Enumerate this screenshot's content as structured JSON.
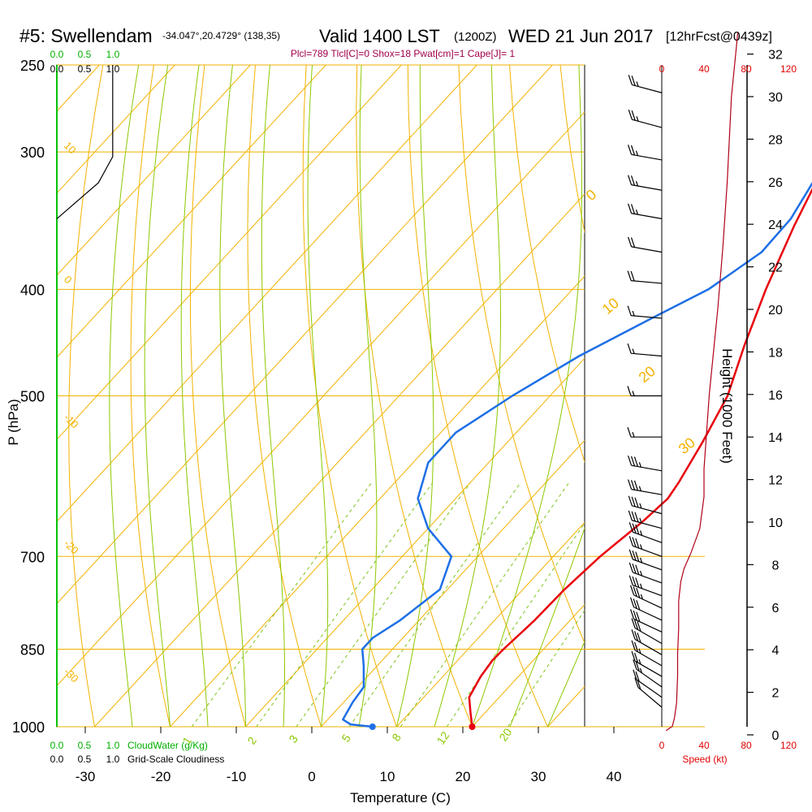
{
  "header": {
    "station": "#5: Swellendam",
    "location": "-34.047°,20.4729° (138,35)",
    "valid": "Valid 1400 LST",
    "zulu": "(1200Z)",
    "date": "WED 21 Jun 2017",
    "forecast": "[12hrFcst@0439z]",
    "indices": "Plcl=789 Tlcl[C]=0 Shox=18 Pwat[cm]=1 Cape[J]= 1"
  },
  "colors": {
    "isotherm": "#f2b200",
    "dry_adiabat": "#f2b200",
    "moist_adiabat": "#8cc800",
    "mixing_ratio": "#7fc41c",
    "temperature": "#e8000b",
    "dewpoint": "#1e6fe6",
    "cloud": "#00b000",
    "speed": "#e00000",
    "height_profile": "#b00018",
    "index_text": "#a0004a"
  },
  "axes": {
    "x_title": "Temperature (C)",
    "y_title": "P (hPa)",
    "right_title": "Height (1000 Feet)",
    "x_ticks": [
      "-30",
      "-20",
      "-10",
      "0",
      "10",
      "20",
      "30",
      "40"
    ],
    "x_tick_values": [
      -30,
      -20,
      -10,
      0,
      10,
      20,
      30,
      40
    ],
    "p_ticks": [
      "250",
      "300",
      "400",
      "500",
      "700",
      "850",
      "1000"
    ],
    "p_tick_values": [
      250,
      300,
      400,
      500,
      700,
      850,
      1000
    ],
    "height_ticks": [
      "0",
      "2",
      "4",
      "6",
      "8",
      "10",
      "12",
      "14",
      "16",
      "18",
      "20",
      "22",
      "24",
      "26",
      "28",
      "30",
      "32"
    ],
    "height_tick_values": [
      0,
      2,
      4,
      6,
      8,
      10,
      12,
      14,
      16,
      18,
      20,
      22,
      24,
      26,
      28,
      30,
      32
    ]
  },
  "cloud_scale": {
    "top_green": [
      "0.0",
      "0.5",
      "1.0"
    ],
    "top_black": [
      "0.0",
      "0.5",
      "1.0"
    ],
    "bottom_green": [
      "0.0",
      "0.5",
      "1.0"
    ],
    "bottom_black": [
      "0.0",
      "0.5",
      "1.0"
    ],
    "cloudwater_label": "CloudWater (g/Kg)",
    "cloudiness_label": "Grid-Scale Cloudiness"
  },
  "speed_scale": {
    "ticks": [
      "0",
      "40",
      "80",
      "120"
    ],
    "tick_values": [
      0,
      40,
      80,
      120
    ],
    "label": "Speed (kt)"
  },
  "chart_data": {
    "type": "line",
    "skewt": true,
    "x_range_c": [
      -35,
      45
    ],
    "p_range_hpa": [
      250,
      1000
    ],
    "log_pressure": true,
    "series": [
      {
        "name": "",
        "kind": "temperature",
        "points": [
          [
            20,
            1000
          ],
          [
            18,
            970
          ],
          [
            16,
            940
          ],
          [
            15,
            900
          ],
          [
            14.6,
            870
          ],
          [
            14.7,
            850
          ],
          [
            15.3,
            800
          ],
          [
            15.5,
            750
          ],
          [
            16.2,
            700
          ],
          [
            17.6,
            650
          ],
          [
            18.1,
            620
          ],
          [
            17.6,
            600
          ],
          [
            15.8,
            550
          ],
          [
            13.5,
            500
          ],
          [
            9.6,
            450
          ],
          [
            5.6,
            400
          ],
          [
            1.6,
            350
          ],
          [
            -1.2,
            315
          ],
          [
            -4.3,
            285
          ],
          [
            -6,
            270
          ]
        ]
      },
      {
        "name": "",
        "kind": "dewpoint",
        "points": [
          [
            6.8,
            1000
          ],
          [
            3.6,
            995
          ],
          [
            2,
            985
          ],
          [
            1.2,
            950
          ],
          [
            0.8,
            920
          ],
          [
            -1.8,
            880
          ],
          [
            -4,
            850
          ],
          [
            -4,
            830
          ],
          [
            -2.5,
            800
          ],
          [
            -1,
            750
          ],
          [
            -3.5,
            700
          ],
          [
            -10,
            660
          ],
          [
            -15,
            620
          ],
          [
            -18,
            575
          ],
          [
            -18,
            540
          ],
          [
            -15,
            500
          ],
          [
            -11,
            460
          ],
          [
            -6,
            425
          ],
          [
            -2,
            400
          ],
          [
            0.5,
            370
          ],
          [
            0.3,
            345
          ],
          [
            -1.5,
            315
          ],
          [
            -3.8,
            290
          ],
          [
            -5.5,
            270
          ]
        ]
      },
      {
        "name": "",
        "kind": "cloud_scale",
        "points": [
          [
            0.74,
            250
          ],
          [
            0.74,
            270
          ],
          [
            0.74,
            290
          ],
          [
            0.74,
            303
          ],
          [
            0.55,
            320
          ],
          [
            0,
            345
          ]
        ]
      }
    ],
    "surface_points": [
      [
        20,
        1000
      ],
      [
        6.8,
        1000
      ]
    ],
    "isotherm_labels": [
      "-30",
      "-20",
      "-10",
      "0",
      "10",
      "20",
      "30"
    ],
    "dry_adiabat_labels": [
      "10",
      "0",
      "-10",
      "-20",
      "-30"
    ],
    "moist_adiabat_labels": [
      "0",
      "10",
      "20",
      "30"
    ],
    "mixing_ratio_labels": [
      "1",
      "2",
      "3",
      "5",
      "8",
      "12",
      "20"
    ],
    "wind_barbs": [
      {
        "p": 265,
        "speed": 25,
        "dir": 285
      },
      {
        "p": 285,
        "speed": 25,
        "dir": 285
      },
      {
        "p": 305,
        "speed": 25,
        "dir": 280
      },
      {
        "p": 325,
        "speed": 25,
        "dir": 280
      },
      {
        "p": 345,
        "speed": 25,
        "dir": 280
      },
      {
        "p": 370,
        "speed": 20,
        "dir": 280
      },
      {
        "p": 395,
        "speed": 20,
        "dir": 275
      },
      {
        "p": 425,
        "speed": 15,
        "dir": 275
      },
      {
        "p": 460,
        "speed": 15,
        "dir": 275
      },
      {
        "p": 500,
        "speed": 15,
        "dir": 270
      },
      {
        "p": 545,
        "speed": 15,
        "dir": 270
      },
      {
        "p": 585,
        "speed": 35,
        "dir": 280
      },
      {
        "p": 615,
        "speed": 35,
        "dir": 280
      },
      {
        "p": 640,
        "speed": 35,
        "dir": 285
      },
      {
        "p": 660,
        "speed": 35,
        "dir": 285
      },
      {
        "p": 680,
        "speed": 35,
        "dir": 290
      },
      {
        "p": 700,
        "speed": 35,
        "dir": 290
      },
      {
        "p": 720,
        "speed": 35,
        "dir": 290
      },
      {
        "p": 740,
        "speed": 35,
        "dir": 290
      },
      {
        "p": 760,
        "speed": 35,
        "dir": 290
      },
      {
        "p": 780,
        "speed": 35,
        "dir": 295
      },
      {
        "p": 800,
        "speed": 30,
        "dir": 295
      },
      {
        "p": 820,
        "speed": 30,
        "dir": 295
      },
      {
        "p": 840,
        "speed": 30,
        "dir": 300
      },
      {
        "p": 860,
        "speed": 30,
        "dir": 300
      },
      {
        "p": 880,
        "speed": 25,
        "dir": 300
      },
      {
        "p": 900,
        "speed": 25,
        "dir": 300
      },
      {
        "p": 920,
        "speed": 25,
        "dir": 305
      },
      {
        "p": 940,
        "speed": 20,
        "dir": 305
      },
      {
        "p": 960,
        "speed": 20,
        "dir": 310
      }
    ],
    "speed_profile": [
      [
        4,
        0.2
      ],
      [
        10,
        0.4
      ],
      [
        12,
        0.8
      ],
      [
        14,
        1.5
      ],
      [
        15,
        2.8
      ],
      [
        15,
        3.8
      ],
      [
        16,
        5
      ],
      [
        16,
        6.3
      ],
      [
        18,
        7.2
      ],
      [
        21,
        7.8
      ],
      [
        28,
        8.6
      ],
      [
        36,
        9.7
      ],
      [
        40,
        11.2
      ],
      [
        40,
        12.5
      ],
      [
        45,
        16
      ],
      [
        53,
        20
      ],
      [
        58,
        23
      ],
      [
        62,
        26
      ],
      [
        66,
        30
      ],
      [
        72,
        33
      ]
    ]
  }
}
